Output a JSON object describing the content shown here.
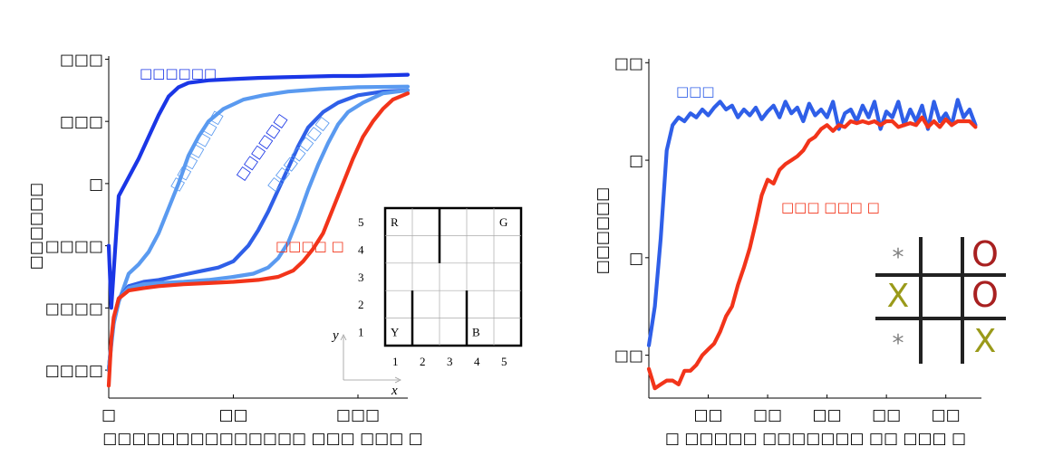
{
  "colors": {
    "dark_blue": "#1a36e6",
    "mid_blue": "#2f5fe8",
    "light_blue": "#5a9af0",
    "red": "#f2341a",
    "axis": "#000000",
    "x_mark": "#9a9a1a",
    "o_mark": "#a82020",
    "star": "#808080"
  },
  "chart_data": [
    {
      "type": "line",
      "ylabel": "□□□□□□",
      "xlabel": "□□□□□□□□□□□□□□ □□□ □□□ □",
      "x_tick_labels": [
        "□",
        "□□",
        "□□□"
      ],
      "y_tick_labels": [
        "□□□",
        "□□□",
        "□",
        "□□□□",
        "□□□□",
        "□□□□"
      ],
      "x_ticks": [
        0,
        50,
        100
      ],
      "y_ticks": [
        3,
        2,
        1,
        0,
        -1,
        -2
      ],
      "xlim": [
        0,
        120
      ],
      "ylim": [
        -2.45,
        3.05
      ],
      "grid": false,
      "series": [
        {
          "name": "□□□□□□",
          "color_key": "dark_blue",
          "points": [
            [
              0,
              0
            ],
            [
              1,
              -1.0
            ],
            [
              2,
              -0.4
            ],
            [
              4,
              0.8
            ],
            [
              8,
              1.1
            ],
            [
              12,
              1.4
            ],
            [
              16,
              1.75
            ],
            [
              20,
              2.1
            ],
            [
              24,
              2.4
            ],
            [
              28,
              2.55
            ],
            [
              32,
              2.62
            ],
            [
              40,
              2.66
            ],
            [
              50,
              2.68
            ],
            [
              60,
              2.7
            ],
            [
              70,
              2.71
            ],
            [
              80,
              2.72
            ],
            [
              90,
              2.73
            ],
            [
              100,
              2.73
            ],
            [
              110,
              2.74
            ],
            [
              120,
              2.75
            ]
          ]
        },
        {
          "name": "□□□□□□□",
          "color_key": "light_blue",
          "points": [
            [
              0,
              -2
            ],
            [
              1,
              -1.6
            ],
            [
              2,
              -1.25
            ],
            [
              4,
              -0.9
            ],
            [
              8,
              -0.45
            ],
            [
              12,
              -0.3
            ],
            [
              16,
              -0.1
            ],
            [
              20,
              0.2
            ],
            [
              24,
              0.6
            ],
            [
              28,
              1.0
            ],
            [
              32,
              1.45
            ],
            [
              36,
              1.75
            ],
            [
              40,
              2.0
            ],
            [
              46,
              2.2
            ],
            [
              54,
              2.35
            ],
            [
              62,
              2.42
            ],
            [
              72,
              2.48
            ],
            [
              85,
              2.52
            ],
            [
              100,
              2.55
            ],
            [
              120,
              2.56
            ]
          ]
        },
        {
          "name": "□□□□□□□",
          "color_key": "mid_blue",
          "points": [
            [
              0,
              -2
            ],
            [
              1,
              -1.55
            ],
            [
              2,
              -1.2
            ],
            [
              4,
              -0.85
            ],
            [
              8,
              -0.65
            ],
            [
              14,
              -0.58
            ],
            [
              20,
              -0.55
            ],
            [
              26,
              -0.5
            ],
            [
              32,
              -0.45
            ],
            [
              38,
              -0.4
            ],
            [
              44,
              -0.35
            ],
            [
              50,
              -0.25
            ],
            [
              56,
              0.0
            ],
            [
              60,
              0.25
            ],
            [
              64,
              0.55
            ],
            [
              68,
              0.9
            ],
            [
              72,
              1.25
            ],
            [
              76,
              1.6
            ],
            [
              80,
              1.9
            ],
            [
              86,
              2.15
            ],
            [
              92,
              2.3
            ],
            [
              100,
              2.42
            ],
            [
              110,
              2.48
            ],
            [
              120,
              2.5
            ]
          ]
        },
        {
          "name": "□□□□□□□",
          "color_key": "light_blue",
          "points": [
            [
              0,
              -2
            ],
            [
              1,
              -1.55
            ],
            [
              2,
              -1.2
            ],
            [
              4,
              -0.85
            ],
            [
              8,
              -0.68
            ],
            [
              14,
              -0.62
            ],
            [
              20,
              -0.6
            ],
            [
              30,
              -0.58
            ],
            [
              40,
              -0.55
            ],
            [
              50,
              -0.5
            ],
            [
              58,
              -0.45
            ],
            [
              64,
              -0.35
            ],
            [
              68,
              -0.2
            ],
            [
              72,
              0.05
            ],
            [
              76,
              0.45
            ],
            [
              80,
              0.9
            ],
            [
              84,
              1.3
            ],
            [
              88,
              1.65
            ],
            [
              92,
              1.95
            ],
            [
              96,
              2.15
            ],
            [
              102,
              2.3
            ],
            [
              110,
              2.45
            ],
            [
              120,
              2.5
            ]
          ]
        },
        {
          "name": "□□□□ □",
          "color_key": "red",
          "points": [
            [
              0,
              -2.25
            ],
            [
              1,
              -1.5
            ],
            [
              2,
              -1.15
            ],
            [
              4,
              -0.85
            ],
            [
              8,
              -0.72
            ],
            [
              14,
              -0.68
            ],
            [
              20,
              -0.65
            ],
            [
              30,
              -0.62
            ],
            [
              40,
              -0.6
            ],
            [
              50,
              -0.58
            ],
            [
              60,
              -0.55
            ],
            [
              68,
              -0.5
            ],
            [
              74,
              -0.4
            ],
            [
              78,
              -0.25
            ],
            [
              82,
              -0.05
            ],
            [
              86,
              0.2
            ],
            [
              90,
              0.6
            ],
            [
              94,
              1.0
            ],
            [
              98,
              1.4
            ],
            [
              102,
              1.75
            ],
            [
              106,
              2.0
            ],
            [
              110,
              2.2
            ],
            [
              114,
              2.35
            ],
            [
              120,
              2.45
            ]
          ]
        }
      ],
      "curve_labels": [
        "□□□□□□",
        "□□□□□□□",
        "□□□□□□",
        "□□□□□□□",
        "□□□□ □"
      ],
      "inset": {
        "row_labels": [
          "5",
          "4",
          "3",
          "2",
          "1"
        ],
        "col_labels": [
          "1",
          "2",
          "3",
          "4",
          "5"
        ],
        "axis_x": "x",
        "axis_y": "y",
        "cells": [
          {
            "label": "R",
            "col": 1,
            "row": 5
          },
          {
            "label": "G",
            "col": 5,
            "row": 5
          },
          {
            "label": "Y",
            "col": 1,
            "row": 1
          },
          {
            "label": "B",
            "col": 4,
            "row": 1
          }
        ],
        "walls": [
          {
            "between_cols": [
              2,
              3
            ],
            "rows": [
              4,
              5
            ]
          },
          {
            "between_cols": [
              1,
              2
            ],
            "rows": [
              1,
              2
            ]
          },
          {
            "between_cols": [
              3,
              4
            ],
            "rows": [
              1,
              2
            ]
          }
        ]
      }
    },
    {
      "type": "line",
      "ylabel": "□□□□□□",
      "xlabel": "□ □□□□□ □□□□□□□ □□ □□□ □",
      "x_tick_labels": [
        "□□",
        "□□",
        "□□",
        "□□",
        "□□"
      ],
      "y_tick_labels": [
        "□□",
        "□",
        "□",
        "□□"
      ],
      "x_ticks": [
        10,
        20,
        30,
        40,
        50
      ],
      "y_ticks": [
        1,
        0.5,
        0,
        -0.5
      ],
      "xlim": [
        0,
        56
      ],
      "ylim": [
        -0.72,
        1.02
      ],
      "grid": false,
      "series": [
        {
          "name": "□□□",
          "color_key": "mid_blue",
          "points": [
            [
              0,
              -0.45
            ],
            [
              1,
              -0.25
            ],
            [
              2,
              0.1
            ],
            [
              3,
              0.55
            ],
            [
              4,
              0.68
            ],
            [
              5,
              0.72
            ],
            [
              6,
              0.7
            ],
            [
              7,
              0.74
            ],
            [
              8,
              0.72
            ],
            [
              9,
              0.76
            ],
            [
              10,
              0.73
            ],
            [
              11,
              0.77
            ],
            [
              12,
              0.8
            ],
            [
              13,
              0.76
            ],
            [
              14,
              0.78
            ],
            [
              15,
              0.72
            ],
            [
              16,
              0.76
            ],
            [
              17,
              0.73
            ],
            [
              18,
              0.77
            ],
            [
              19,
              0.71
            ],
            [
              20,
              0.75
            ],
            [
              21,
              0.78
            ],
            [
              22,
              0.72
            ],
            [
              23,
              0.8
            ],
            [
              24,
              0.74
            ],
            [
              25,
              0.77
            ],
            [
              26,
              0.7
            ],
            [
              27,
              0.79
            ],
            [
              28,
              0.73
            ],
            [
              29,
              0.76
            ],
            [
              30,
              0.72
            ],
            [
              31,
              0.8
            ],
            [
              32,
              0.66
            ],
            [
              33,
              0.74
            ],
            [
              34,
              0.76
            ],
            [
              35,
              0.7
            ],
            [
              36,
              0.78
            ],
            [
              37,
              0.72
            ],
            [
              38,
              0.8
            ],
            [
              39,
              0.66
            ],
            [
              40,
              0.75
            ],
            [
              41,
              0.72
            ],
            [
              42,
              0.8
            ],
            [
              43,
              0.68
            ],
            [
              44,
              0.76
            ],
            [
              45,
              0.7
            ],
            [
              46,
              0.78
            ],
            [
              47,
              0.66
            ],
            [
              48,
              0.8
            ],
            [
              49,
              0.7
            ],
            [
              50,
              0.74
            ],
            [
              51,
              0.68
            ],
            [
              52,
              0.81
            ],
            [
              53,
              0.72
            ],
            [
              54,
              0.76
            ],
            [
              55,
              0.68
            ]
          ]
        },
        {
          "name": "□□□ □ □",
          "color_key": "red",
          "points": [
            [
              0,
              -0.57
            ],
            [
              1,
              -0.67
            ],
            [
              2,
              -0.65
            ],
            [
              3,
              -0.63
            ],
            [
              4,
              -0.63
            ],
            [
              5,
              -0.65
            ],
            [
              6,
              -0.58
            ],
            [
              7,
              -0.58
            ],
            [
              8,
              -0.55
            ],
            [
              9,
              -0.5
            ],
            [
              10,
              -0.47
            ],
            [
              11,
              -0.44
            ],
            [
              12,
              -0.38
            ],
            [
              13,
              -0.3
            ],
            [
              14,
              -0.25
            ],
            [
              15,
              -0.14
            ],
            [
              16,
              -0.05
            ],
            [
              17,
              0.05
            ],
            [
              18,
              0.18
            ],
            [
              19,
              0.32
            ],
            [
              20,
              0.4
            ],
            [
              21,
              0.38
            ],
            [
              22,
              0.45
            ],
            [
              23,
              0.48
            ],
            [
              24,
              0.5
            ],
            [
              25,
              0.52
            ],
            [
              26,
              0.55
            ],
            [
              27,
              0.6
            ],
            [
              28,
              0.62
            ],
            [
              29,
              0.66
            ],
            [
              30,
              0.68
            ],
            [
              31,
              0.65
            ],
            [
              32,
              0.68
            ],
            [
              33,
              0.67
            ],
            [
              34,
              0.7
            ],
            [
              35,
              0.69
            ],
            [
              36,
              0.7
            ],
            [
              37,
              0.69
            ],
            [
              38,
              0.7
            ],
            [
              39,
              0.68
            ],
            [
              40,
              0.7
            ],
            [
              41,
              0.7
            ],
            [
              42,
              0.67
            ],
            [
              43,
              0.68
            ],
            [
              44,
              0.69
            ],
            [
              45,
              0.68
            ],
            [
              46,
              0.72
            ],
            [
              47,
              0.67
            ],
            [
              48,
              0.7
            ],
            [
              49,
              0.67
            ],
            [
              50,
              0.71
            ],
            [
              51,
              0.68
            ],
            [
              52,
              0.7
            ],
            [
              53,
              0.7
            ],
            [
              54,
              0.7
            ],
            [
              55,
              0.67
            ]
          ]
        }
      ],
      "curve_labels": [
        "□□□",
        "□□□ □□□ □"
      ],
      "inset": {
        "board": [
          [
            "*",
            "",
            "O"
          ],
          [
            "X",
            "",
            "O"
          ],
          [
            "*",
            "",
            "X"
          ]
        ]
      }
    }
  ]
}
